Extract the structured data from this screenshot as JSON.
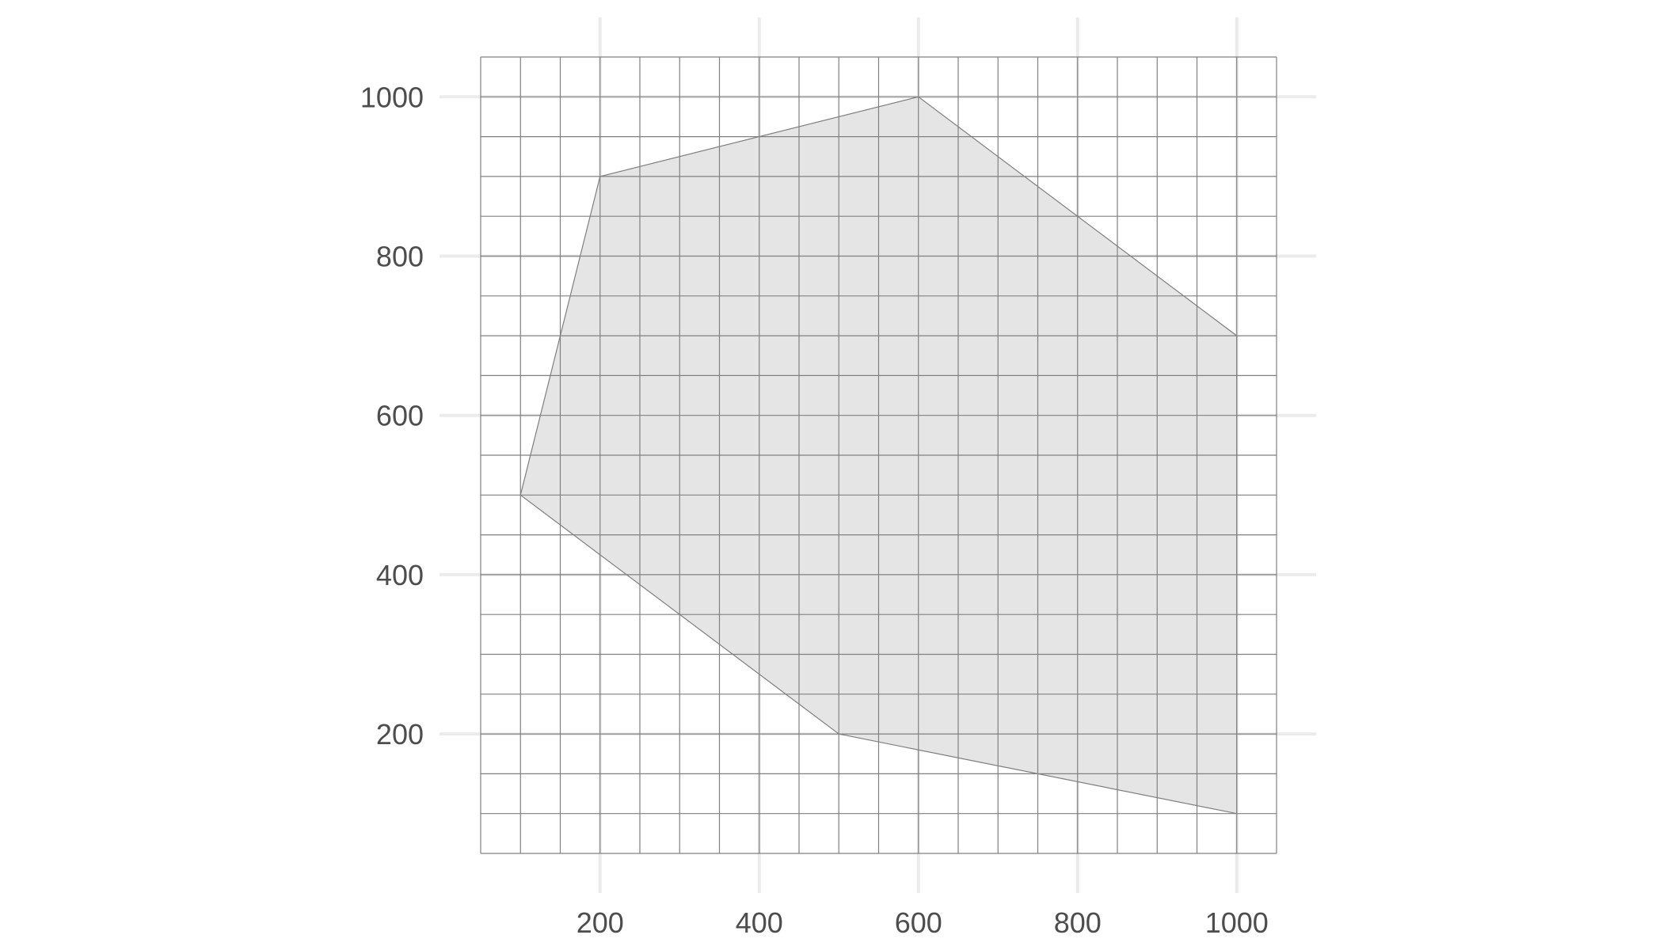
{
  "chart_data": {
    "type": "area",
    "title": "",
    "xlabel": "",
    "ylabel": "",
    "xlim": [
      50,
      1050
    ],
    "ylim": [
      50,
      1050
    ],
    "x_ticks": [
      200,
      400,
      600,
      800,
      1000
    ],
    "y_ticks": [
      200,
      400,
      600,
      800,
      1000
    ],
    "x_tick_labels": [
      "200",
      "400",
      "600",
      "800",
      "1000"
    ],
    "y_tick_labels": [
      "200",
      "400",
      "600",
      "800",
      "1000"
    ],
    "grid": true,
    "cell_grid": {
      "x_min": 50,
      "x_max": 1050,
      "y_min": 50,
      "y_max": 1050,
      "step": 50
    },
    "polygon": [
      {
        "x": 600,
        "y": 1000
      },
      {
        "x": 1000,
        "y": 700
      },
      {
        "x": 1000,
        "y": 100
      },
      {
        "x": 500,
        "y": 200
      },
      {
        "x": 100,
        "y": 500
      },
      {
        "x": 200,
        "y": 900
      }
    ],
    "colors": {
      "fill": "#e5e5e5",
      "outline": "#7f7f7f",
      "cell_lines": "#808080",
      "major_grid": "#ebebeb",
      "tick_text": "#4d4d4d"
    }
  }
}
